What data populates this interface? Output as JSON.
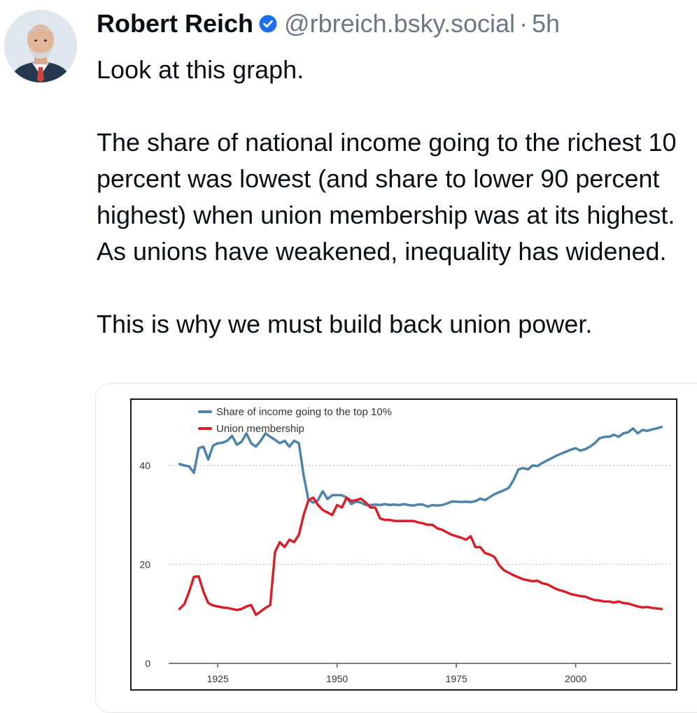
{
  "post": {
    "author_name": "Robert Reich",
    "handle": "@rbreich.bsky.social",
    "separator": "·",
    "time": "5h",
    "verified": true,
    "paragraphs": [
      "Look at this graph.",
      "The share of national income going to the richest 10 percent was lowest (and share to lower 90 percent highest) when union membership was at its highest. As unions have weakened, inequality has widened.",
      "This is why we must build back union power."
    ]
  },
  "icons": {
    "avatar": "avatar-photo",
    "verified": "verified-check-icon"
  },
  "colors": {
    "verified_badge": "#1d6ef0",
    "handle_text": "#6b7785",
    "income_series": "#4f84a8",
    "union_series": "#d6212a"
  },
  "chart_data": {
    "type": "line",
    "title": "",
    "xlabel": "",
    "ylabel": "",
    "xlim": [
      1915,
      2020
    ],
    "ylim": [
      0,
      52
    ],
    "x_ticks": [
      1925,
      1950,
      1975,
      2000
    ],
    "y_ticks": [
      0,
      20,
      40
    ],
    "grid": "dotted horizontal at y ticks",
    "legend": "top-left",
    "series": [
      {
        "name": "Share of income going to the top 10%",
        "color": "#4f84a8",
        "x": [
          1917,
          1918,
          1919,
          1920,
          1921,
          1922,
          1923,
          1924,
          1925,
          1926,
          1927,
          1928,
          1929,
          1930,
          1931,
          1932,
          1933,
          1934,
          1935,
          1936,
          1937,
          1938,
          1939,
          1940,
          1941,
          1942,
          1943,
          1944,
          1945,
          1946,
          1947,
          1948,
          1949,
          1950,
          1951,
          1952,
          1953,
          1954,
          1955,
          1956,
          1957,
          1958,
          1959,
          1960,
          1961,
          1962,
          1963,
          1964,
          1965,
          1966,
          1967,
          1968,
          1969,
          1970,
          1971,
          1972,
          1973,
          1974,
          1975,
          1976,
          1977,
          1978,
          1979,
          1980,
          1981,
          1982,
          1983,
          1984,
          1985,
          1986,
          1987,
          1988,
          1989,
          1990,
          1991,
          1992,
          1993,
          1994,
          1995,
          1996,
          1997,
          1998,
          1999,
          2000,
          2001,
          2002,
          2003,
          2004,
          2005,
          2006,
          2007,
          2008,
          2009,
          2010,
          2011,
          2012,
          2013,
          2014,
          2015,
          2016,
          2017,
          2018
        ],
        "y": [
          40.3,
          40,
          39.8,
          38.5,
          43.5,
          43.8,
          41.2,
          44,
          44.5,
          44.6,
          45,
          46,
          44.2,
          44.8,
          46.5,
          44.5,
          43.8,
          45,
          46.5,
          45.8,
          45.2,
          44.5,
          45,
          43.8,
          45,
          44.5,
          38,
          33,
          32.5,
          33,
          34.8,
          33.2,
          34,
          34,
          34,
          33.5,
          32.2,
          32.7,
          32.5,
          32,
          32,
          32.1,
          32,
          32.2,
          32,
          32.1,
          32,
          32.2,
          32,
          31.9,
          32.1,
          32.1,
          31.7,
          32,
          31.9,
          32,
          32.3,
          32.7,
          32.7,
          32.6,
          32.7,
          32.6,
          32.8,
          33.3,
          33,
          33.6,
          34.2,
          34.6,
          35,
          35.5,
          37.1,
          39.2,
          39.5,
          39.2,
          40,
          39.9,
          40.5,
          41,
          41.5,
          42,
          42.4,
          42.8,
          43.2,
          43.5,
          43,
          43.3,
          43.8,
          44.5,
          45.5,
          45.8,
          45.8,
          46.2,
          45.8,
          46.5,
          46.7,
          47.5,
          46.5,
          47.2,
          47,
          47.3,
          47.5,
          47.8
        ]
      },
      {
        "name": "Union membership",
        "color": "#d6212a",
        "x": [
          1917,
          1918,
          1919,
          1920,
          1921,
          1922,
          1923,
          1924,
          1925,
          1926,
          1927,
          1928,
          1929,
          1930,
          1931,
          1932,
          1933,
          1934,
          1935,
          1936,
          1937,
          1938,
          1939,
          1940,
          1941,
          1942,
          1943,
          1944,
          1945,
          1946,
          1947,
          1948,
          1949,
          1950,
          1951,
          1952,
          1953,
          1954,
          1955,
          1956,
          1957,
          1958,
          1959,
          1960,
          1961,
          1962,
          1963,
          1964,
          1965,
          1966,
          1967,
          1968,
          1969,
          1970,
          1971,
          1972,
          1973,
          1974,
          1975,
          1976,
          1977,
          1978,
          1979,
          1980,
          1981,
          1982,
          1983,
          1984,
          1985,
          1986,
          1987,
          1988,
          1989,
          1990,
          1991,
          1992,
          1993,
          1994,
          1995,
          1996,
          1997,
          1998,
          1999,
          2000,
          2001,
          2002,
          2003,
          2004,
          2005,
          2006,
          2007,
          2008,
          2009,
          2010,
          2011,
          2012,
          2013,
          2014,
          2015,
          2016,
          2017,
          2018
        ],
        "y": [
          11,
          12,
          14.5,
          17.5,
          17.6,
          14.5,
          12.2,
          11.7,
          11.5,
          11.3,
          11.2,
          11,
          10.8,
          11,
          11.5,
          11.8,
          9.8,
          10.5,
          11.2,
          11.8,
          22.5,
          24.5,
          23.5,
          25,
          24.5,
          26,
          30,
          33,
          33.5,
          32,
          31,
          30.5,
          30,
          32,
          31.5,
          33.5,
          32.8,
          33,
          33.3,
          32.5,
          31.5,
          31.5,
          29.3,
          29,
          29,
          28.8,
          28.8,
          28.8,
          28.8,
          28.8,
          28.5,
          28.3,
          28,
          28,
          27.3,
          27,
          26.5,
          26,
          25.7,
          25.4,
          25,
          25.7,
          23.5,
          23.5,
          22.3,
          22,
          21.5,
          19.8,
          18.8,
          18.3,
          17.8,
          17.4,
          17,
          16.8,
          16.6,
          16.7,
          16.2,
          16,
          15.5,
          15,
          14.7,
          14.4,
          14,
          13.8,
          13.6,
          13.5,
          13.1,
          12.8,
          12.7,
          12.5,
          12.5,
          12.3,
          12.5,
          12.2,
          12.1,
          11.8,
          11.5,
          11.3,
          11.4,
          11.2,
          11.1,
          11
        ]
      }
    ]
  }
}
